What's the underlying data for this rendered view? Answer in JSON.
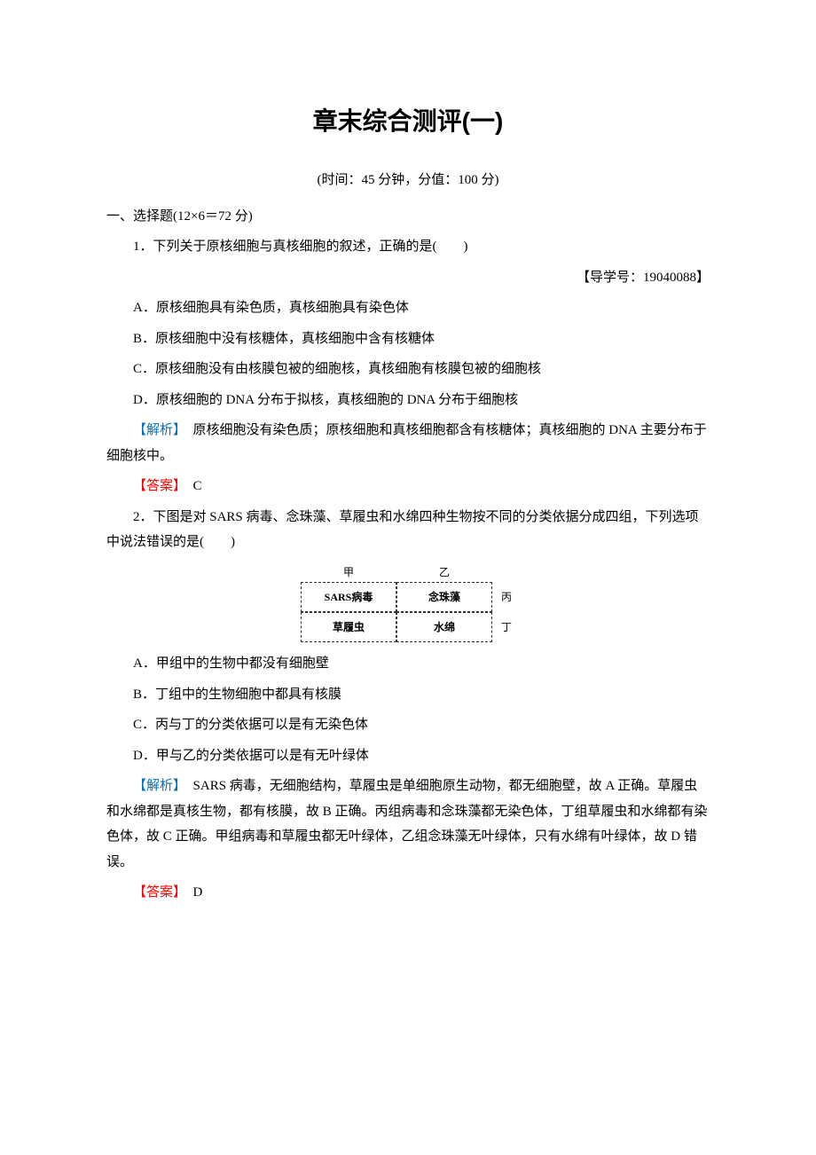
{
  "title": "章末综合测评(一)",
  "meta": "(时间：45 分钟，分值：100 分)",
  "section": "一、选择题(12×6＝72 分)",
  "q1": {
    "stem": "1．下列关于原核细胞与真核细胞的叙述，正确的是(　　)",
    "guide": "【导学号：19040088】",
    "A": "A．原核细胞具有染色质，真核细胞具有染色体",
    "B": "B．原核细胞中没有核糖体，真核细胞中含有核糖体",
    "C": "C．原核细胞没有由核膜包被的细胞核，真核细胞有核膜包被的细胞核",
    "D": "D．原核细胞的 DNA 分布于拟核，真核细胞的 DNA 分布于细胞核",
    "expl_label": "【解析】",
    "expl": "　原核细胞没有染色质；原核细胞和真核细胞都含有核糖体；真核细胞的 DNA 主要分布于细胞核中。",
    "ans_label": "【答案】",
    "ans": "　C"
  },
  "q2": {
    "stem": "2．下图是对 SARS 病毒、念珠藻、草履虫和水绵四种生物按不同的分类依据分成四组，下列选项中说法错误的是(　　)",
    "table": {
      "top_left": "甲",
      "top_right": "乙",
      "r1c1": "SARS病毒",
      "r1c2": "念珠藻",
      "side1": "丙",
      "r2c1": "草履虫",
      "r2c2": "水绵",
      "side2": "丁"
    },
    "A": "A．甲组中的生物中都没有细胞壁",
    "B": "B．丁组中的生物细胞中都具有核膜",
    "C": "C．丙与丁的分类依据可以是有无染色体",
    "D": "D．甲与乙的分类依据可以是有无叶绿体",
    "expl_label": "【解析】",
    "expl": "　SARS 病毒，无细胞结构，草履虫是单细胞原生动物，都无细胞壁，故 A 正确。草履虫和水绵都是真核生物，都有核膜，故 B 正确。丙组病毒和念珠藻都无染色体，丁组草履虫和水绵都有染色体，故 C 正确。甲组病毒和草履虫都无叶绿体，乙组念珠藻无叶绿体，只有水绵有叶绿体，故 D 错误。",
    "ans_label": "【答案】",
    "ans": "　D"
  }
}
